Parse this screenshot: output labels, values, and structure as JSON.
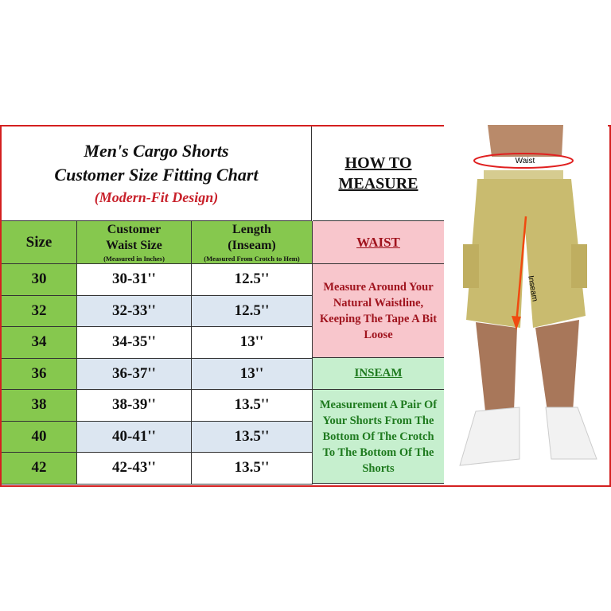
{
  "title": {
    "line1": "Men's Cargo Shorts",
    "line2": "Customer Size Fitting Chart",
    "subtitle": "(Modern-Fit Design)"
  },
  "columns": [
    {
      "label": "Size",
      "note": ""
    },
    {
      "label": "Customer Waist Size",
      "note": "(Measured in Inches)"
    },
    {
      "label": "Length (Inseam)",
      "note": "(Measured From Crotch to Hem)"
    }
  ],
  "rows": [
    {
      "size": "30",
      "waist": "30-31''",
      "length": "12.5''"
    },
    {
      "size": "32",
      "waist": "32-33''",
      "length": "12.5''"
    },
    {
      "size": "34",
      "waist": "34-35''",
      "length": "13''"
    },
    {
      "size": "36",
      "waist": "36-37''",
      "length": "13''"
    },
    {
      "size": "38",
      "waist": "38-39''",
      "length": "13.5''"
    },
    {
      "size": "40",
      "waist": "40-41''",
      "length": "13.5''"
    },
    {
      "size": "42",
      "waist": "42-43''",
      "length": "13.5''"
    }
  ],
  "how_to": {
    "heading": "HOW TO MEASURE",
    "waist_label": "WAIST",
    "waist_text": "Measure Around Your Natural Waistline, Keeping The Tape A Bit Loose",
    "inseam_label": "INSEAM",
    "inseam_text": "Measurement A Pair Of Your Shorts From The Bottom Of The Crotch To The Bottom Of The Shorts"
  },
  "photo": {
    "waist_tag": "Waist",
    "inseam_tag": "Inseam"
  },
  "colors": {
    "border": "#d42020",
    "header_green": "#86c84e",
    "row_blue": "#dce6f1",
    "waist_pink": "#f8c6cc",
    "inseam_green": "#c6efce",
    "waist_text": "#a0141e",
    "inseam_text": "#1e7a1e",
    "subtitle_red": "#c8202a"
  }
}
